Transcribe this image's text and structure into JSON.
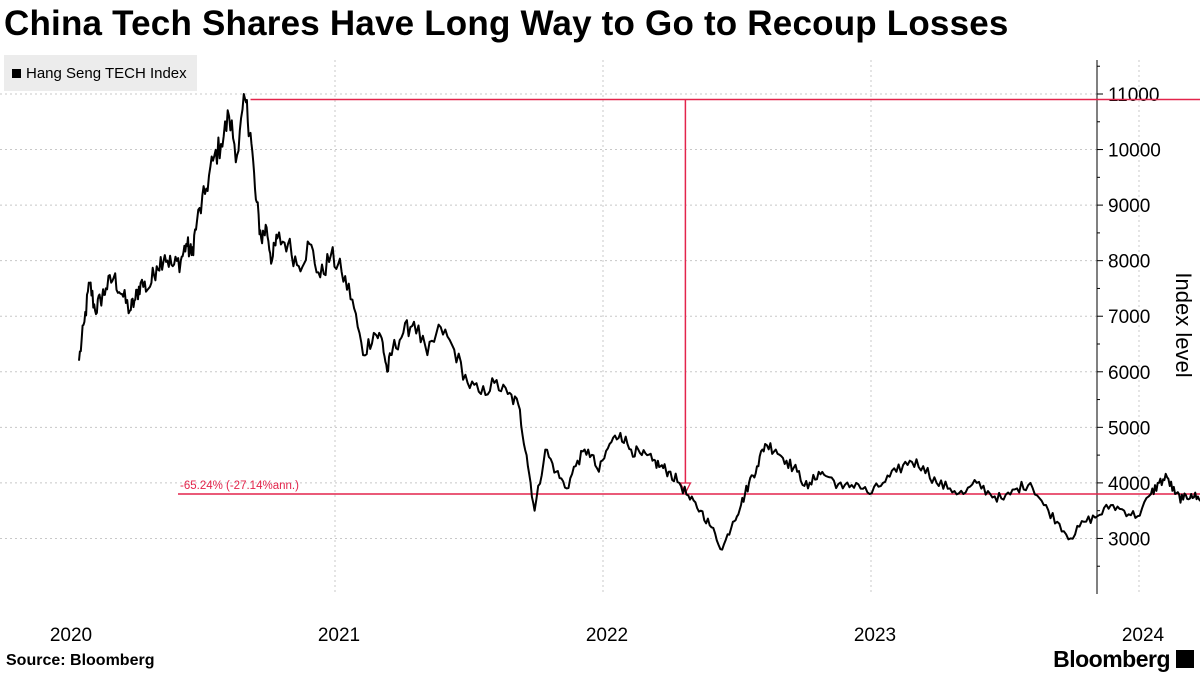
{
  "header": {
    "title": "China Tech Shares Have Long Way to Go to Recoup Losses"
  },
  "legend": {
    "label": "Hang Seng TECH Index"
  },
  "footer": {
    "source": "Source: Bloomberg",
    "brand": "Bloomberg"
  },
  "colors": {
    "series": "#000000",
    "annotation": "#e3244b",
    "grid": "#c8c8c8"
  },
  "chart_data": {
    "type": "line",
    "title": "China Tech Shares Have Long Way to Go to Recoup Losses",
    "ylabel": "Index level",
    "xlabel": "",
    "y_axis_side": "right",
    "ylim": [
      2000,
      11500
    ],
    "yticks": [
      3000,
      4000,
      5000,
      6000,
      7000,
      8000,
      9000,
      10000,
      11000
    ],
    "xlim": [
      2020.0,
      2024.25
    ],
    "x_year_gridlines": [
      2021,
      2022,
      2023,
      2024
    ],
    "x_labels": [
      {
        "year": 2020,
        "label": "2020"
      },
      {
        "year": 2021,
        "label": "2021"
      },
      {
        "year": 2022,
        "label": "2022"
      },
      {
        "year": 2023,
        "label": "2023"
      },
      {
        "year": 2024,
        "label": "2024"
      }
    ],
    "grid": true,
    "series": [
      {
        "name": "Hang Seng TECH Index",
        "x": [
          2020.0,
          2020.02,
          2020.04,
          2020.06,
          2020.08,
          2020.1,
          2020.13,
          2020.16,
          2020.19,
          2020.21,
          2020.23,
          2020.26,
          2020.29,
          2020.32,
          2020.35,
          2020.38,
          2020.4,
          2020.42,
          2020.44,
          2020.47,
          2020.5,
          2020.53,
          2020.56,
          2020.59,
          2020.62,
          2020.64,
          2020.66,
          2020.68,
          2020.7,
          2020.72,
          2020.74,
          2020.78,
          2020.82,
          2020.86,
          2020.9,
          2020.94,
          2020.98,
          2021.02,
          2021.06,
          2021.1,
          2021.13,
          2021.15,
          2021.17,
          2021.21,
          2021.25,
          2021.3,
          2021.35,
          2021.4,
          2021.45,
          2021.5,
          2021.55,
          2021.6,
          2021.64,
          2021.67,
          2021.7,
          2021.74,
          2021.78,
          2021.82,
          2021.86,
          2021.9,
          2021.94,
          2021.98,
          2022.02,
          2022.06,
          2022.1,
          2022.14,
          2022.17,
          2022.2,
          2022.24,
          2022.28,
          2022.32,
          2022.36,
          2022.4,
          2022.44,
          2022.47,
          2022.5,
          2022.53,
          2022.56,
          2022.6,
          2022.64,
          2022.68,
          2022.72,
          2022.76,
          2022.8,
          2022.85,
          2022.9,
          2022.95,
          2023.0,
          2023.05,
          2023.1,
          2023.15,
          2023.2,
          2023.25,
          2023.3,
          2023.35,
          2023.4,
          2023.45,
          2023.5,
          2023.55,
          2023.6,
          2023.65,
          2023.7,
          2023.75,
          2023.8,
          2023.85,
          2023.9,
          2023.95,
          2024.0,
          2024.03,
          2024.06,
          2024.09,
          2024.12,
          2024.15,
          2024.18,
          2024.22
        ],
        "values": [
          6200,
          6900,
          7600,
          7100,
          7300,
          7500,
          7700,
          7400,
          7100,
          7300,
          7600,
          7500,
          7900,
          8100,
          7900,
          8000,
          8300,
          8100,
          8700,
          9200,
          9800,
          10100,
          10600,
          9900,
          10900,
          10300,
          9100,
          8400,
          8600,
          8000,
          8400,
          8300,
          7900,
          8300,
          7700,
          8100,
          7800,
          7300,
          6300,
          6700,
          6600,
          6000,
          6400,
          6700,
          6900,
          6300,
          6800,
          6400,
          5800,
          5600,
          5800,
          5600,
          5400,
          4500,
          3500,
          4600,
          4200,
          3900,
          4400,
          4600,
          4200,
          4700,
          4900,
          4600,
          4500,
          4400,
          4300,
          4200,
          4000,
          3700,
          3500,
          3200,
          2800,
          3300,
          3600,
          4000,
          4300,
          4700,
          4600,
          4400,
          4200,
          3900,
          4200,
          4100,
          3900,
          4000,
          3800,
          4000,
          4200,
          4400,
          4300,
          4000,
          3900,
          3800,
          4000,
          3800,
          3700,
          3900,
          4000,
          3600,
          3300,
          3000,
          3300,
          3400,
          3600,
          3500,
          3400,
          3800,
          4000,
          4100,
          3800,
          3700,
          3800,
          3700,
          3800
        ]
      }
    ],
    "annotations": {
      "peak_value": 10900,
      "peak_year": 2020.64,
      "current_value": 3800,
      "arrow_year": 2022.3,
      "change_label": "-65.24% (-27.14%ann.)"
    }
  }
}
